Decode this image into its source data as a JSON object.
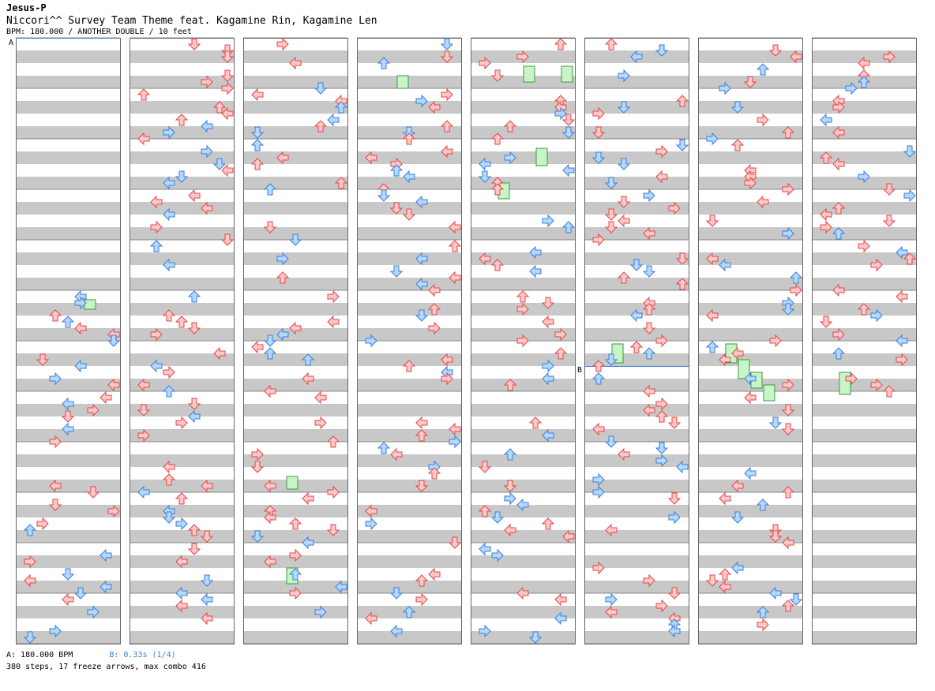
{
  "header": {
    "artist": "Jesus-P",
    "title": "Niccori^^ Survey Team Theme feat. Kagamine Rin, Kagamine Len",
    "info": "BPM: 180.000 / ANOTHER DOUBLE / 10 feet"
  },
  "markers": {
    "a": "A",
    "b": "B"
  },
  "footer": {
    "bpm_a": "A: 180.000 BPM",
    "bpm_b": "B: 0.33s (1/4)",
    "stats": "380 steps, 17 freeze arrows, max combo 416"
  },
  "colors": {
    "stripe": "#c8c8c8",
    "red_arrow_fill": "#ffc8c8",
    "red_arrow_stroke": "#e04848",
    "blue_arrow_fill": "#b4d8ff",
    "blue_arrow_stroke": "#3a7fd6",
    "freeze_fill": "#c8f5c8",
    "freeze_stroke": "#3c9a3c",
    "marker_line": "#3a7fd6"
  }
}
